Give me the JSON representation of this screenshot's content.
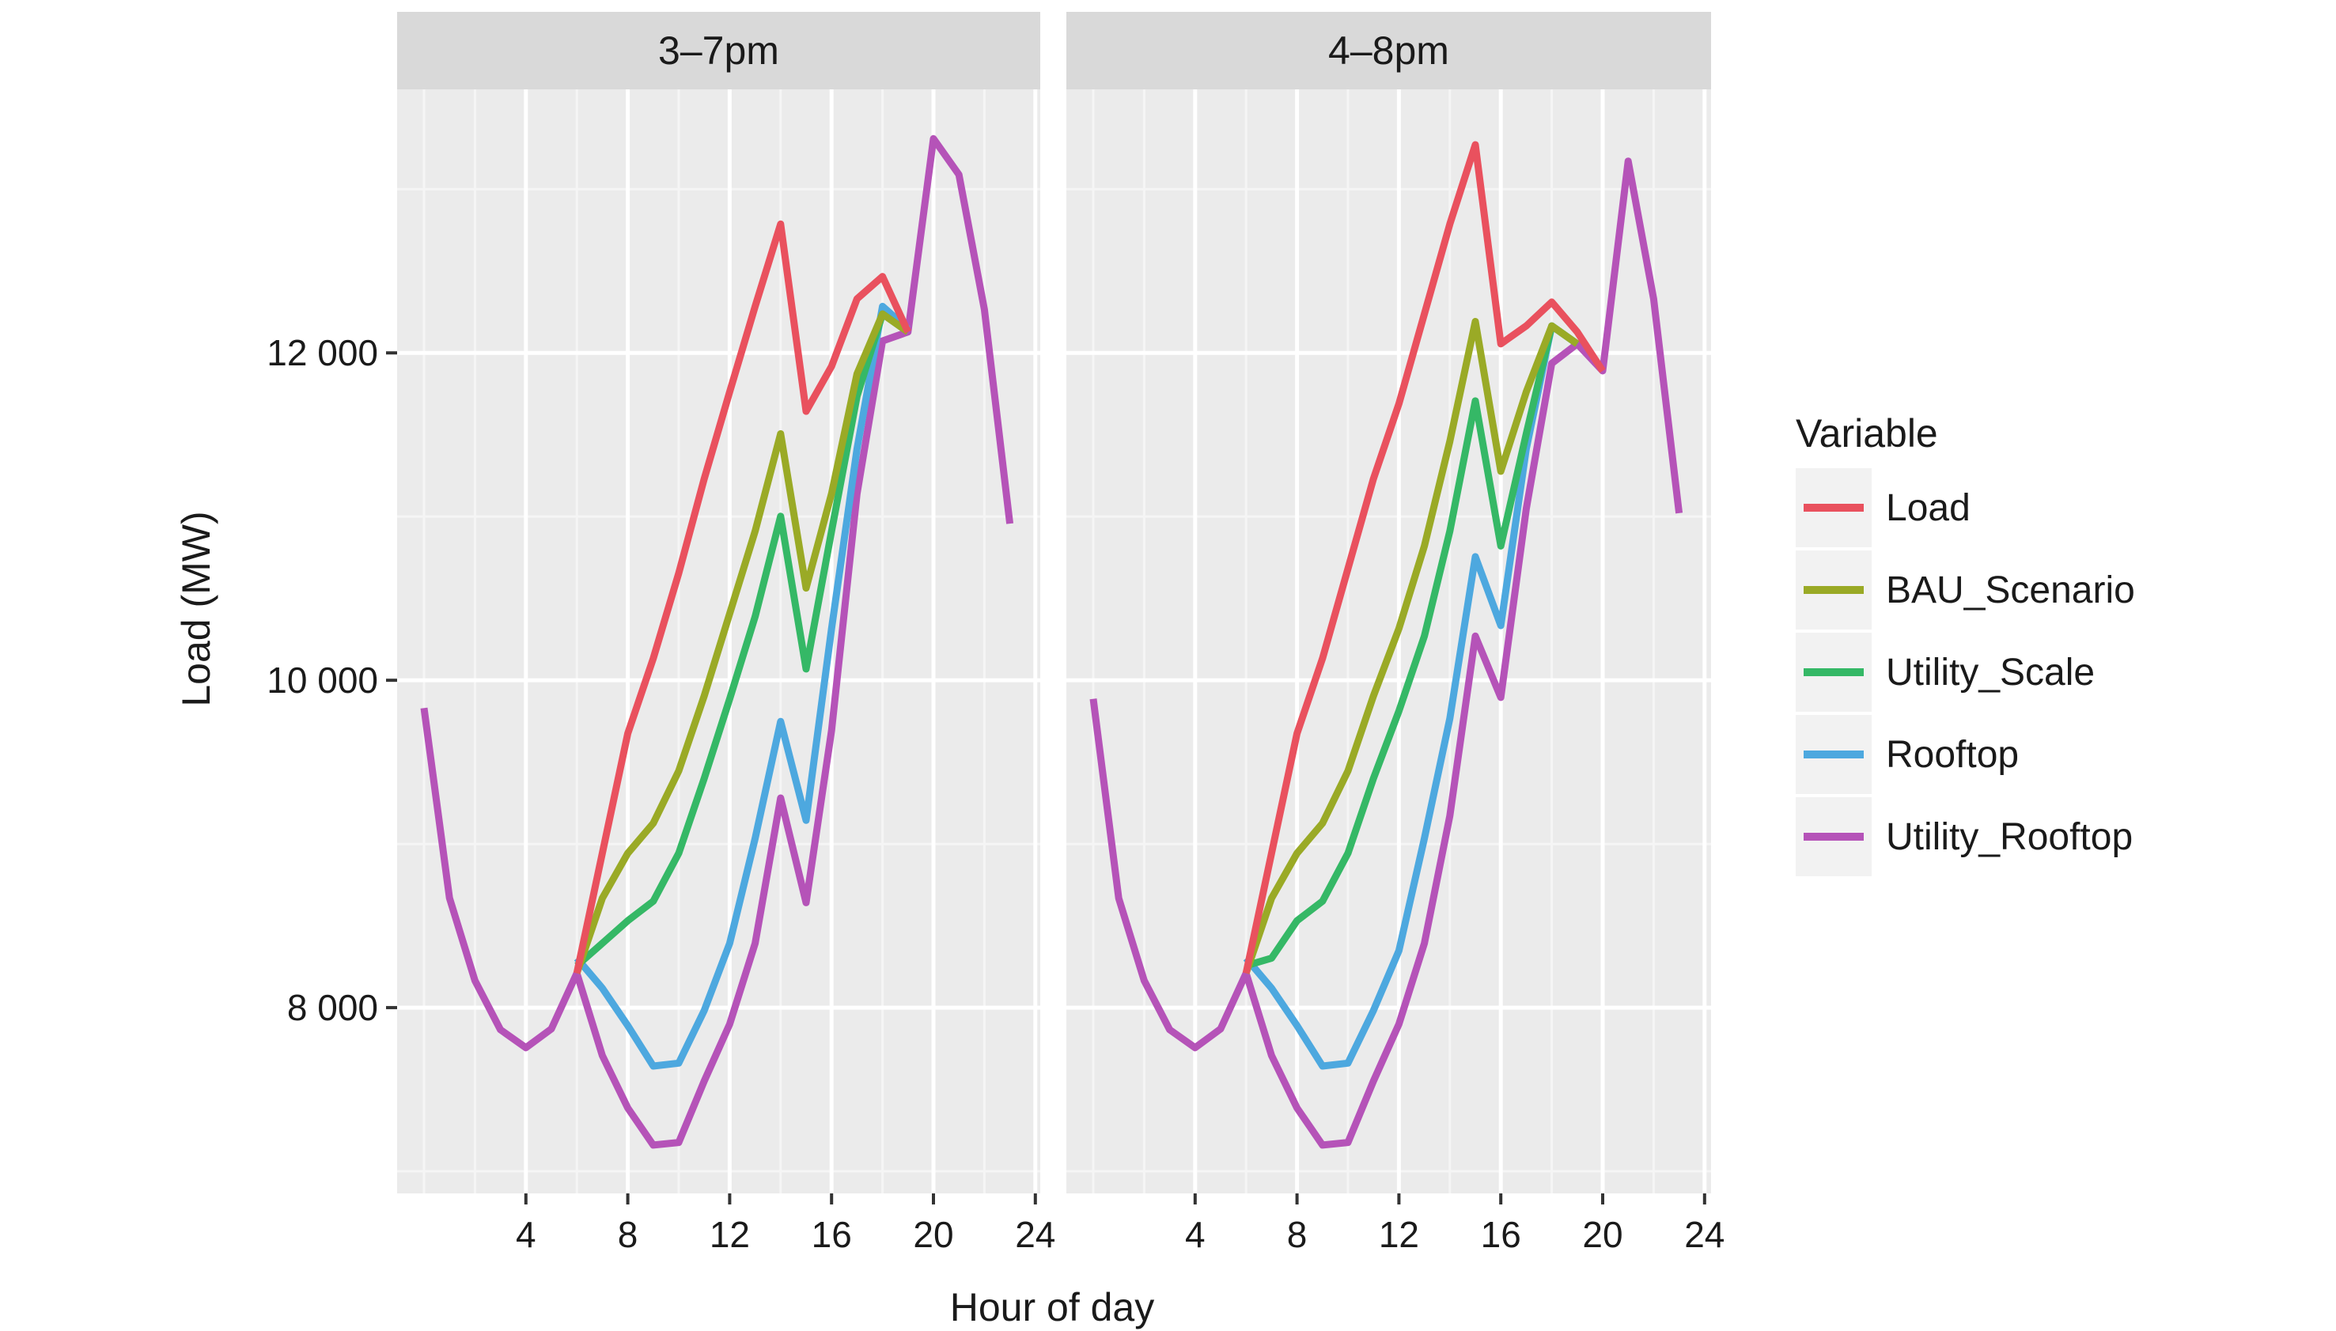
{
  "chart_data": {
    "type": "line",
    "title": "",
    "xlabel": "Hour of day",
    "ylabel": "Load (MW)",
    "xlim": [
      -1,
      24.5
    ],
    "ylim": [
      6865,
      13610
    ],
    "x_ticks": [
      4,
      8,
      12,
      16,
      20,
      24
    ],
    "y_ticks": [
      8000,
      10000,
      12000
    ],
    "y_tick_labels": [
      "8 000",
      "10 000",
      "12 000"
    ],
    "grid": true,
    "legend": {
      "title": "Variable",
      "placement": "right",
      "entries": [
        "Load",
        "BAU_Scenario",
        "Utility_Scale",
        "Rooftop",
        "Utility_Rooftop"
      ]
    },
    "colors": {
      "Load": "#E9515E",
      "BAU_Scenario": "#9AAA26",
      "Utility_Scale": "#35B866",
      "Rooftop": "#4DA8DF",
      "Utility_Rooftop": "#B553B8"
    },
    "panels": [
      {
        "label": "3–7pm",
        "series": [
          {
            "name": "Utility_Rooftop",
            "x": [
              0,
              1,
              2,
              3,
              4,
              5,
              6,
              7,
              8,
              9,
              10,
              11,
              12,
              13,
              14,
              15,
              16,
              17,
              18,
              19,
              20,
              21,
              22,
              23
            ],
            "values": [
              9830,
              8670,
              8165,
              7865,
              7755,
              7870,
              8210,
              7707,
              7387,
              7160,
              7176,
              7551,
              7899,
              8393,
              9281,
              8641,
              9693,
              11140,
              12073,
              12128,
              13309,
              13089,
              12265,
              10957
            ]
          },
          {
            "name": "Rooftop",
            "x": [
              6,
              7,
              8,
              9,
              10,
              11,
              12,
              13,
              14,
              15,
              16,
              17,
              18,
              19
            ],
            "values": [
              8302,
              8119,
              7890,
              7643,
              7661,
              7982,
              8393,
              9034,
              9748,
              9144,
              10316,
              11414,
              12284,
              12146
            ]
          },
          {
            "name": "Utility_Scale",
            "x": [
              6,
              7,
              8,
              9,
              10,
              11,
              12,
              13,
              14,
              15,
              16,
              17,
              18,
              19
            ],
            "values": [
              8256,
              8393,
              8531,
              8650,
              8943,
              9400,
              9886,
              10389,
              11002,
              10069,
              10911,
              11735,
              12238,
              12128
            ]
          },
          {
            "name": "BAU_Scenario",
            "x": [
              6,
              7,
              8,
              9,
              10,
              11,
              12,
              13,
              14,
              15,
              16,
              17,
              18,
              19
            ],
            "values": [
              8210,
              8668,
              8943,
              9126,
              9446,
              9904,
              10407,
              10911,
              11506,
              10563,
              11140,
              11872,
              12238,
              12128
            ]
          },
          {
            "name": "Load",
            "x": [
              6,
              7,
              8,
              9,
              10,
              11,
              12,
              13,
              14,
              15,
              16,
              17,
              18,
              19
            ],
            "values": [
              8210,
              8943,
              9675,
              10133,
              10654,
              11231,
              11762,
              12284,
              12787,
              11643,
              11918,
              12330,
              12467,
              12128
            ]
          }
        ]
      },
      {
        "label": "4–8pm",
        "series": [
          {
            "name": "Utility_Rooftop",
            "x": [
              0,
              1,
              2,
              3,
              4,
              5,
              6,
              7,
              8,
              9,
              10,
              11,
              12,
              13,
              14,
              15,
              16,
              17,
              18,
              19,
              20,
              21,
              22,
              23
            ],
            "values": [
              9886,
              8668,
              8165,
              7865,
              7755,
              7870,
              8210,
              7707,
              7387,
              7160,
              7176,
              7551,
              7899,
              8393,
              9172,
              10270,
              9895,
              11048,
              11936,
              12055,
              11890,
              13172,
              12330,
              11021
            ]
          },
          {
            "name": "Rooftop",
            "x": [
              6,
              7,
              8,
              9,
              10,
              11,
              12,
              13,
              14,
              15,
              16,
              17,
              18,
              19
            ],
            "values": [
              8302,
              8119,
              7890,
              7643,
              7661,
              7982,
              8348,
              9034,
              9767,
              10755,
              10334,
              11414,
              12165,
              12055
            ]
          },
          {
            "name": "Utility_Scale",
            "x": [
              6,
              7,
              8,
              9,
              10,
              11,
              12,
              13,
              14,
              15,
              16,
              17,
              18,
              19
            ],
            "values": [
              8256,
              8302,
              8531,
              8650,
              8943,
              9400,
              9812,
              10270,
              10911,
              11707,
              10820,
              11506,
              12165,
              12055
            ]
          },
          {
            "name": "BAU_Scenario",
            "x": [
              6,
              7,
              8,
              9,
              10,
              11,
              12,
              13,
              14,
              15,
              16,
              17,
              18,
              19
            ],
            "values": [
              8210,
              8668,
              8943,
              9126,
              9446,
              9904,
              10316,
              10820,
              11460,
              12192,
              11277,
              11762,
              12165,
              12055
            ]
          },
          {
            "name": "Load",
            "x": [
              6,
              7,
              8,
              9,
              10,
              11,
              12,
              13,
              14,
              15,
              16,
              17,
              18,
              19,
              20
            ],
            "values": [
              8210,
              8943,
              9675,
              10133,
              10682,
              11231,
              11689,
              12238,
              12787,
              13272,
              12055,
              12165,
              12311,
              12128,
              11890
            ]
          }
        ]
      }
    ]
  }
}
